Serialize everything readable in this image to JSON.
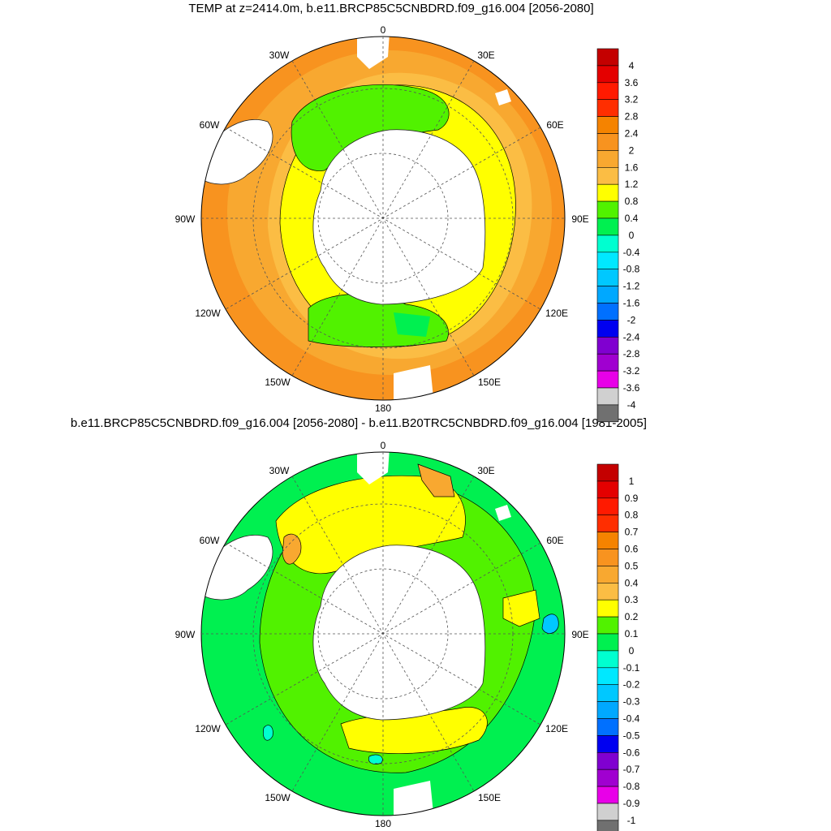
{
  "top_panel": {
    "title": "TEMP at z=2414.0m, b.e11.BRCP85C5CNBDRD.f09_g16.004 [2056-2080]",
    "longitude_labels": [
      "0",
      "30E",
      "60E",
      "90E",
      "120E",
      "150E",
      "180",
      "150W",
      "120W",
      "90W",
      "60W",
      "30W"
    ],
    "colorbar": {
      "labels": [
        "4",
        "3.6",
        "3.2",
        "2.8",
        "2.4",
        "2",
        "1.6",
        "1.2",
        "0.8",
        "0.4",
        "0",
        "-0.4",
        "-0.8",
        "-1.2",
        "-1.6",
        "-2",
        "-2.4",
        "-2.8",
        "-3.2",
        "-3.6",
        "-4"
      ],
      "colors": [
        "#c40000",
        "#e40000",
        "#ff1a00",
        "#ff2e00",
        "#f58300",
        "#f8931f",
        "#f8a830",
        "#fbbd44",
        "#ffff00",
        "#51f200",
        "#00f050",
        "#00ffd0",
        "#00e8ff",
        "#00c8ff",
        "#00a8ff",
        "#0070ff",
        "#0000f0",
        "#8000d0",
        "#a000d0",
        "#e800e8",
        "#d0d0d0",
        "#707070"
      ]
    }
  },
  "bottom_panel": {
    "title": "b.e11.BRCP85C5CNBDRD.f09_g16.004 [2056-2080] - b.e11.B20TRC5CNBDRD.f09_g16.004 [1981-2005]",
    "longitude_labels": [
      "0",
      "30E",
      "60E",
      "90E",
      "120E",
      "150E",
      "180",
      "150W",
      "120W",
      "90W",
      "60W",
      "30W"
    ],
    "colorbar": {
      "labels": [
        "1",
        "0.9",
        "0.8",
        "0.7",
        "0.6",
        "0.5",
        "0.4",
        "0.3",
        "0.2",
        "0.1",
        "0",
        "-0.1",
        "-0.2",
        "-0.3",
        "-0.4",
        "-0.5",
        "-0.6",
        "-0.7",
        "-0.8",
        "-0.9",
        "-1"
      ],
      "colors": [
        "#c40000",
        "#e40000",
        "#ff1a00",
        "#ff2e00",
        "#f58300",
        "#f8931f",
        "#f8a830",
        "#fbbd44",
        "#ffff00",
        "#51f200",
        "#00f050",
        "#00ffd0",
        "#00e8ff",
        "#00c8ff",
        "#00a8ff",
        "#0070ff",
        "#0000f0",
        "#8000d0",
        "#a000d0",
        "#e800e8",
        "#d0d0d0",
        "#707070"
      ]
    }
  },
  "colors": {
    "land": "#ffffff",
    "top_outer": "#f8931f",
    "top_mid": "#f8a830",
    "top_ring": "#fbbd44",
    "top_inner": "#ffff00",
    "top_green": "#51f200",
    "bottom_base": "#00f050",
    "bottom_green": "#51f200",
    "bottom_yellow": "#ffff00",
    "bottom_orange": "#f8a830"
  }
}
